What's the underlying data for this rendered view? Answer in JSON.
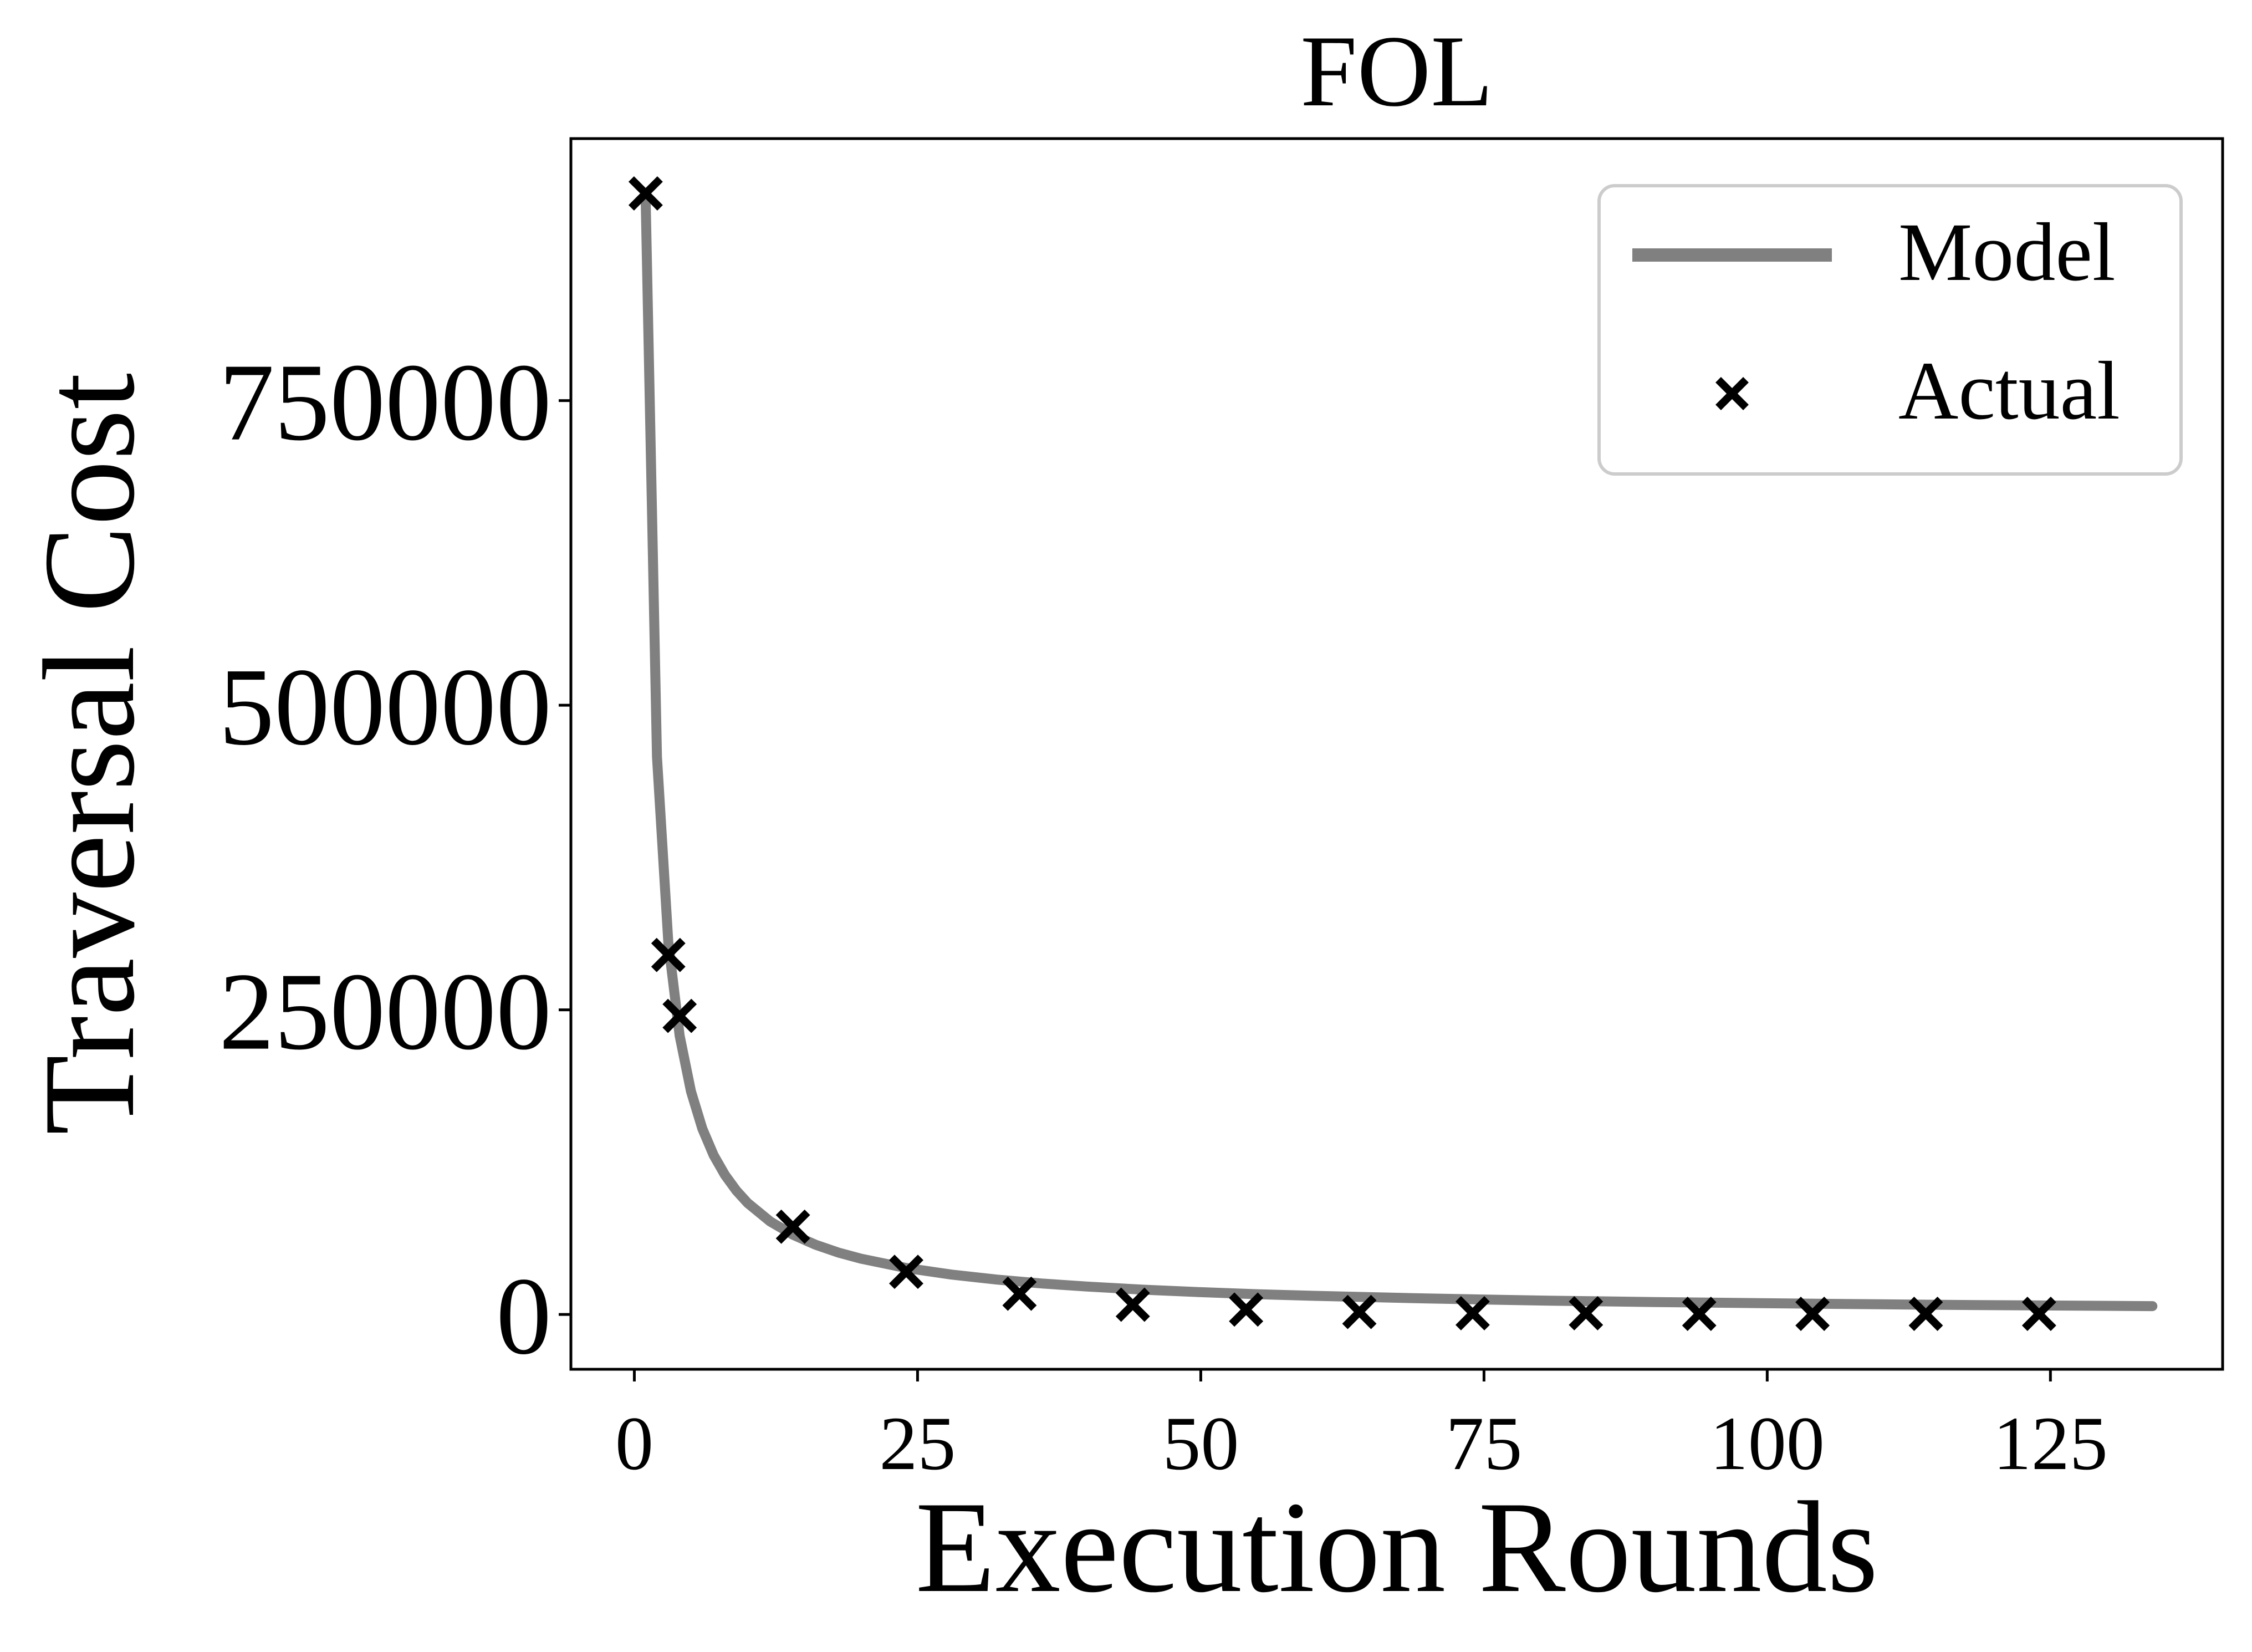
{
  "chart_data": {
    "type": "line",
    "title": "FOL",
    "xlabel": "Execution Rounds",
    "ylabel": "Traversal Cost",
    "xlim": [
      -5.6,
      140.2
    ],
    "ylim": [
      -45000,
      965000
    ],
    "xticks": [
      0,
      25,
      50,
      75,
      100,
      125
    ],
    "yticks": [
      0,
      250000,
      500000,
      750000
    ],
    "xtick_labels": [
      "0",
      "25",
      "50",
      "75",
      "100",
      "125"
    ],
    "ytick_labels": [
      "0",
      "250000",
      "500000",
      "750000"
    ],
    "grid": false,
    "legend_position": "top-right",
    "series": [
      {
        "name": "Model",
        "kind": "line",
        "color": "#808080",
        "x": [
          1,
          2,
          3,
          4,
          5,
          6,
          7,
          8,
          9,
          10,
          12,
          14,
          16,
          18,
          20,
          24,
          28,
          32,
          36,
          40,
          45,
          50,
          55,
          60,
          70,
          80,
          90,
          100,
          110,
          120,
          134
        ],
        "y": [
          915000,
          457500,
          305000,
          228750,
          183000,
          152500,
          130700,
          114400,
          101700,
          91500,
          76250,
          65400,
          57200,
          50800,
          45800,
          38100,
          32700,
          28600,
          25400,
          22900,
          20300,
          18300,
          16600,
          15300,
          13100,
          11400,
          10200,
          9200,
          8300,
          7600,
          6800
        ]
      },
      {
        "name": "Actual",
        "kind": "scatter",
        "marker": "x",
        "color": "#000000",
        "x": [
          1,
          3,
          4,
          14,
          24,
          34,
          44,
          54,
          64,
          74,
          84,
          94,
          104,
          114,
          124
        ],
        "y": [
          920000,
          295000,
          245000,
          72000,
          35000,
          17000,
          8000,
          4000,
          2000,
          1000,
          1000,
          500,
          500,
          500,
          500
        ]
      }
    ]
  }
}
